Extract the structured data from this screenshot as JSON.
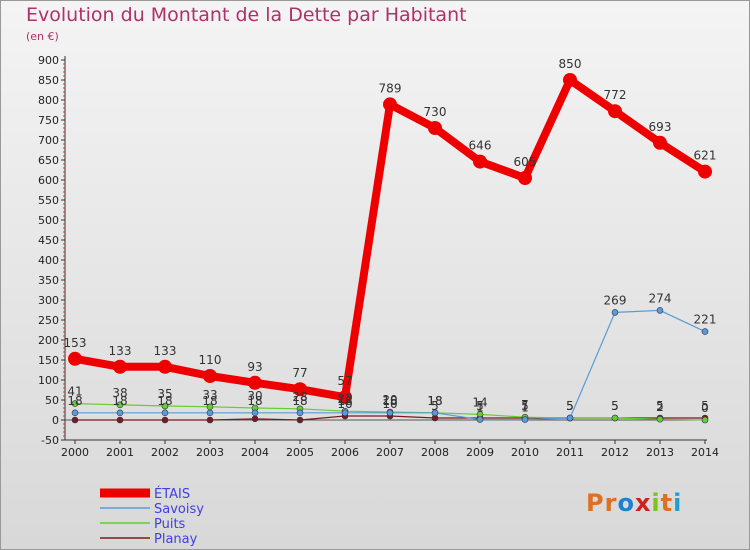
{
  "title": "Evolution du Montant de la Dette par Habitant",
  "subtitle": "(en €)",
  "logo": {
    "text": "Proxiti",
    "letters": [
      "P",
      "r",
      "o",
      "x",
      "i",
      "t",
      "i"
    ],
    "colors": [
      "#e07020",
      "#e07020",
      "#2080d0",
      "#d02020",
      "#80c020",
      "#e07020",
      "#20a0d0"
    ]
  },
  "chart_data": {
    "type": "line",
    "x": [
      "2000",
      "2001",
      "2002",
      "2003",
      "2004",
      "2005",
      "2006",
      "2007",
      "2008",
      "2009",
      "2010",
      "2011",
      "2012",
      "2013",
      "2014"
    ],
    "ylim": [
      -50,
      900
    ],
    "yticks": [
      -50,
      0,
      50,
      100,
      150,
      200,
      250,
      300,
      350,
      400,
      450,
      500,
      550,
      600,
      650,
      700,
      750,
      800,
      850,
      900
    ],
    "grid": false,
    "legend_position": "bottom-left",
    "series": [
      {
        "name": "ÉTAIS",
        "color": "#ee0000",
        "values": [
          153,
          133,
          133,
          110,
          93,
          77,
          57,
          789,
          730,
          646,
          605,
          850,
          772,
          693,
          621
        ],
        "labels": [
          "153",
          "133",
          "133",
          "110",
          "93",
          "77",
          "57",
          "789",
          "730",
          "646",
          "605",
          "850",
          "772",
          "693",
          "621"
        ]
      },
      {
        "name": "Savoisy",
        "color": "#5b9bd5",
        "values": [
          18,
          18,
          18,
          18,
          18,
          18,
          18,
          18,
          18,
          1,
          1,
          5,
          269,
          274,
          221
        ],
        "labels": [
          "18",
          "18",
          "18",
          "18",
          "18",
          "18",
          "18",
          "18",
          "18",
          "1",
          "1",
          "5",
          "269",
          "274",
          "221"
        ]
      },
      {
        "name": "Puits",
        "color": "#66cc33",
        "values": [
          41,
          38,
          35,
          33,
          30,
          28,
          22,
          20,
          18,
          14,
          7,
          5,
          5,
          2,
          0
        ],
        "labels": [
          "41",
          "38",
          "35",
          "33",
          "30",
          "28",
          "22",
          "20",
          "18",
          "14",
          "7",
          "5",
          "5",
          "2",
          "0"
        ]
      },
      {
        "name": "Planay",
        "color": "#7a1a1a",
        "values": [
          0,
          0,
          0,
          0,
          3,
          0,
          10,
          10,
          5,
          5,
          5,
          5,
          5,
          5,
          5
        ],
        "labels": [
          "",
          "",
          "",
          "",
          "",
          "",
          "10",
          "10",
          "5",
          "5",
          "5",
          "5",
          "5",
          "5",
          "5"
        ]
      }
    ]
  }
}
